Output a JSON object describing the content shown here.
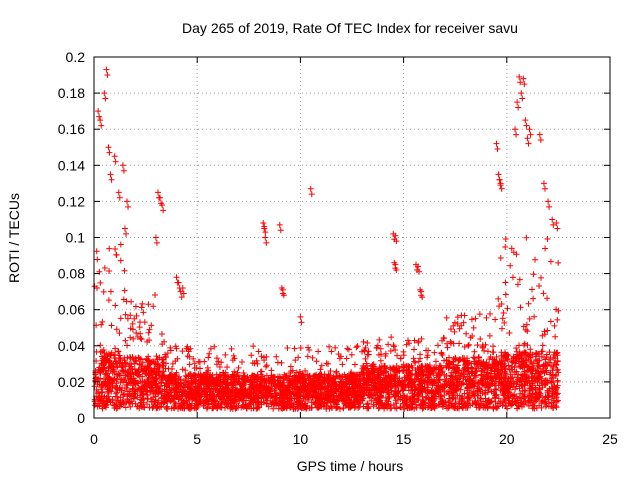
{
  "chart_data": {
    "type": "scatter",
    "title": "Day 265 of 2019, Rate Of TEC Index for receiver savu",
    "xlabel": "GPS time / hours",
    "ylabel": "ROTI / TECUs",
    "xlim": [
      0,
      25
    ],
    "ylim": [
      0,
      0.2
    ],
    "xticks": [
      "0",
      "5",
      "10",
      "15",
      "20",
      "25"
    ],
    "yticks": [
      "0",
      "0.02",
      "0.04",
      "0.06",
      "0.08",
      "0.1",
      "0.12",
      "0.14",
      "0.16",
      "0.18",
      "0.2"
    ],
    "grid": true,
    "marker": "plus",
    "color": "#ff0000",
    "series": [
      {
        "name": "ROTI",
        "note": "Dense cluster of points from 0 to ~22.5 h, mostly below 0.04 TECU/min; outliers listed below",
        "density_profile": [
          {
            "x_range": [
              0,
              1.5
            ],
            "median": 0.02,
            "upper": 0.1
          },
          {
            "x_range": [
              1.5,
              3.5
            ],
            "median": 0.018,
            "upper": 0.07
          },
          {
            "x_range": [
              3.5,
              13
            ],
            "median": 0.012,
            "upper": 0.04
          },
          {
            "x_range": [
              13,
              17
            ],
            "median": 0.015,
            "upper": 0.045
          },
          {
            "x_range": [
              17,
              19.5
            ],
            "median": 0.018,
            "upper": 0.06
          },
          {
            "x_range": [
              19.5,
              22.5
            ],
            "median": 0.02,
            "upper": 0.1
          }
        ],
        "outliers": [
          [
            0.2,
            0.17
          ],
          [
            0.3,
            0.165
          ],
          [
            0.5,
            0.18
          ],
          [
            0.6,
            0.193
          ],
          [
            0.7,
            0.15
          ],
          [
            0.8,
            0.135
          ],
          [
            1.0,
            0.145
          ],
          [
            1.2,
            0.125
          ],
          [
            1.4,
            0.14
          ],
          [
            1.5,
            0.105
          ],
          [
            1.6,
            0.12
          ],
          [
            3.1,
            0.125
          ],
          [
            3.2,
            0.122
          ],
          [
            3.3,
            0.118
          ],
          [
            3.0,
            0.1
          ],
          [
            4.0,
            0.078
          ],
          [
            4.1,
            0.075
          ],
          [
            4.2,
            0.07
          ],
          [
            4.3,
            0.072
          ],
          [
            8.2,
            0.108
          ],
          [
            8.25,
            0.106
          ],
          [
            8.3,
            0.1
          ],
          [
            9.0,
            0.107
          ],
          [
            9.1,
            0.072
          ],
          [
            9.15,
            0.071
          ],
          [
            10.5,
            0.127
          ],
          [
            10.0,
            0.056
          ],
          [
            14.5,
            0.102
          ],
          [
            14.6,
            0.101
          ],
          [
            14.55,
            0.086
          ],
          [
            14.6,
            0.085
          ],
          [
            15.6,
            0.085
          ],
          [
            15.7,
            0.084
          ],
          [
            15.8,
            0.071
          ],
          [
            15.85,
            0.07
          ],
          [
            19.5,
            0.152
          ],
          [
            19.6,
            0.135
          ],
          [
            19.65,
            0.132
          ],
          [
            19.7,
            0.13
          ],
          [
            20.4,
            0.16
          ],
          [
            20.5,
            0.175
          ],
          [
            20.6,
            0.189
          ],
          [
            20.7,
            0.18
          ],
          [
            20.8,
            0.188
          ],
          [
            20.9,
            0.165
          ],
          [
            21.0,
            0.155
          ],
          [
            21.1,
            0.16
          ],
          [
            21.6,
            0.157
          ],
          [
            21.8,
            0.13
          ],
          [
            22.0,
            0.12
          ],
          [
            22.2,
            0.11
          ],
          [
            22.4,
            0.108
          ]
        ]
      }
    ]
  }
}
